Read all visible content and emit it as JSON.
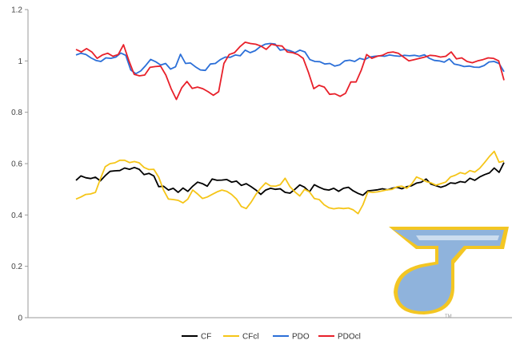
{
  "chart_data": {
    "type": "line",
    "title": "",
    "xlabel": "",
    "ylabel": "",
    "ylim": [
      0,
      1.2
    ],
    "yticks": [
      "0",
      "0.2",
      "0.4",
      "0.6",
      "0.8",
      "1",
      "1.2"
    ],
    "grid": false,
    "legend_position": "bottom",
    "series": [
      {
        "name": "CF",
        "color": "#000000",
        "values": [
          0.535,
          0.552,
          0.545,
          0.542,
          0.547,
          0.533,
          0.553,
          0.57,
          0.572,
          0.573,
          0.583,
          0.578,
          0.585,
          0.578,
          0.557,
          0.562,
          0.552,
          0.51,
          0.512,
          0.497,
          0.504,
          0.488,
          0.505,
          0.492,
          0.512,
          0.528,
          0.522,
          0.512,
          0.54,
          0.535,
          0.536,
          0.538,
          0.528,
          0.532,
          0.515,
          0.522,
          0.51,
          0.497,
          0.48,
          0.497,
          0.504,
          0.5,
          0.502,
          0.488,
          0.485,
          0.5,
          0.517,
          0.508,
          0.49,
          0.518,
          0.508,
          0.5,
          0.497,
          0.504,
          0.492,
          0.504,
          0.508,
          0.494,
          0.484,
          0.477,
          0.494,
          0.496,
          0.498,
          0.502,
          0.498,
          0.504,
          0.508,
          0.502,
          0.51,
          0.514,
          0.524,
          0.528,
          0.54,
          0.52,
          0.514,
          0.508,
          0.514,
          0.525,
          0.523,
          0.53,
          0.527,
          0.543,
          0.535,
          0.548,
          0.557,
          0.564,
          0.583,
          0.566,
          0.604
        ]
      },
      {
        "name": "CFcl",
        "color": "#f5c518",
        "values": [
          0.462,
          0.47,
          0.48,
          0.482,
          0.488,
          0.54,
          0.588,
          0.6,
          0.603,
          0.613,
          0.613,
          0.604,
          0.608,
          0.603,
          0.585,
          0.577,
          0.578,
          0.547,
          0.497,
          0.462,
          0.46,
          0.457,
          0.447,
          0.462,
          0.497,
          0.482,
          0.464,
          0.47,
          0.48,
          0.49,
          0.497,
          0.492,
          0.48,
          0.462,
          0.433,
          0.425,
          0.45,
          0.48,
          0.505,
          0.525,
          0.513,
          0.512,
          0.518,
          0.543,
          0.51,
          0.49,
          0.474,
          0.5,
          0.49,
          0.464,
          0.46,
          0.44,
          0.428,
          0.424,
          0.427,
          0.425,
          0.427,
          0.42,
          0.405,
          0.44,
          0.49,
          0.488,
          0.49,
          0.494,
          0.498,
          0.5,
          0.51,
          0.512,
          0.504,
          0.52,
          0.548,
          0.54,
          0.53,
          0.525,
          0.516,
          0.522,
          0.528,
          0.548,
          0.555,
          0.565,
          0.56,
          0.573,
          0.567,
          0.582,
          0.604,
          0.628,
          0.648,
          0.605,
          0.61
        ]
      },
      {
        "name": "PDO",
        "color": "#2b6fd8",
        "values": [
          1.023,
          1.03,
          1.025,
          1.012,
          1.002,
          0.998,
          1.012,
          1.01,
          1.015,
          1.031,
          1.022,
          0.965,
          0.95,
          0.961,
          0.982,
          1.006,
          0.997,
          0.984,
          0.99,
          0.968,
          0.977,
          1.026,
          0.99,
          0.992,
          0.977,
          0.965,
          0.963,
          0.988,
          0.99,
          1.005,
          1.015,
          1.014,
          1.023,
          1.02,
          1.042,
          1.032,
          1.04,
          1.055,
          1.065,
          1.068,
          1.066,
          1.042,
          1.045,
          1.04,
          1.032,
          1.042,
          1.035,
          1.005,
          0.998,
          0.997,
          0.988,
          0.99,
          0.98,
          0.985,
          1.0,
          1.003,
          0.998,
          1.01,
          1.005,
          1.015,
          1.018,
          1.02,
          1.018,
          1.023,
          1.02,
          1.018,
          1.022,
          1.02,
          1.022,
          1.018,
          1.024,
          1.01,
          1.002,
          1.0,
          0.995,
          1.008,
          0.988,
          0.984,
          0.978,
          0.98,
          0.976,
          0.975,
          0.982,
          0.996,
          0.998,
          0.99,
          0.958
        ]
      },
      {
        "name": "PDOcl",
        "color": "#e8202a",
        "values": [
          1.045,
          1.035,
          1.048,
          1.035,
          1.01,
          1.023,
          1.03,
          1.018,
          1.025,
          1.063,
          1.002,
          0.948,
          0.942,
          0.945,
          0.975,
          0.978,
          0.98,
          0.945,
          0.892,
          0.85,
          0.895,
          0.92,
          0.893,
          0.898,
          0.892,
          0.88,
          0.866,
          0.88,
          0.99,
          1.025,
          1.032,
          1.055,
          1.073,
          1.068,
          1.065,
          1.058,
          1.045,
          1.065,
          1.06,
          1.058,
          1.035,
          1.032,
          1.025,
          1.01,
          0.955,
          0.892,
          0.905,
          0.898,
          0.87,
          0.872,
          0.862,
          0.874,
          0.918,
          0.918,
          0.965,
          1.025,
          1.01,
          1.018,
          1.022,
          1.032,
          1.035,
          1.03,
          1.015,
          1.0,
          1.005,
          1.01,
          1.015,
          1.022,
          1.02,
          1.015,
          1.018,
          1.035,
          1.008,
          1.012,
          0.998,
          0.993,
          1.0,
          1.005,
          1.012,
          1.01,
          1.0,
          0.925
        ]
      }
    ]
  },
  "logo": {
    "name": "St. Louis Blues logo",
    "primary_color": "#8fb3dc",
    "accent_color": "#f3c623",
    "trademark": "TM"
  }
}
